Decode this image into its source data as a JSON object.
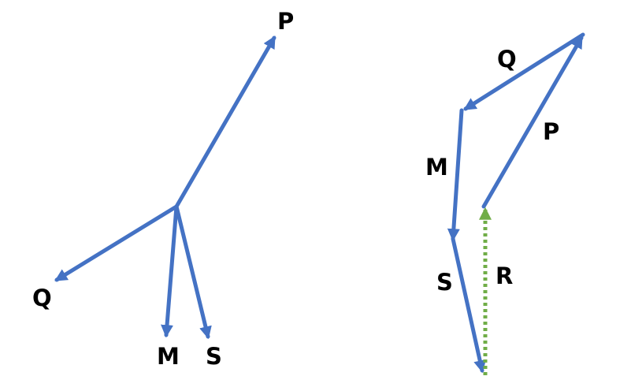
{
  "colors": {
    "vector": "#4472C4",
    "resultant": "#70AD47",
    "label": "#000000"
  },
  "left_figure": {
    "labels": {
      "p": "P",
      "q": "Q",
      "m": "M",
      "s": "S"
    }
  },
  "right_figure": {
    "labels": {
      "q": "Q",
      "p": "P",
      "m": "M",
      "s": "S",
      "r": "R"
    }
  }
}
